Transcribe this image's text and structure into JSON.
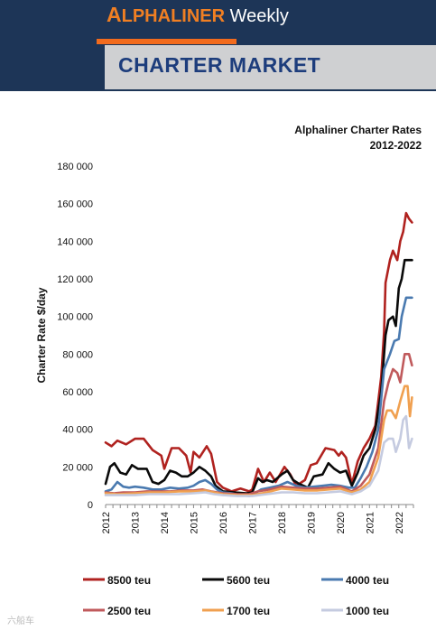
{
  "header": {
    "brand_first": "A",
    "brand_rest": "LPHALINER",
    "brand_suffix": " Weekly",
    "section_title": "CHARTER MARKET",
    "colors": {
      "navy": "#1d3557",
      "orange": "#f26b1d",
      "title_box": "#cfd0d2",
      "title_text": "#1d3d7c"
    }
  },
  "watermark": "六船车",
  "chart_data": {
    "type": "line",
    "title_lines": [
      "Alphaliner Charter Rates",
      "2012-2022"
    ],
    "ylabel": "Charter Rate $/day",
    "xlabel": "",
    "xlim": [
      2012,
      2022.5
    ],
    "ylim": [
      0,
      180000
    ],
    "y_ticks": [
      0,
      20000,
      40000,
      60000,
      80000,
      100000,
      120000,
      140000,
      160000,
      180000
    ],
    "y_tick_labels": [
      "0",
      "20 000",
      "40 000",
      "60 000",
      "80 000",
      "100 000",
      "120 000",
      "140 000",
      "160 000",
      "180 000"
    ],
    "x_ticks": [
      2012,
      2013,
      2014,
      2015,
      2016,
      2017,
      2018,
      2019,
      2020,
      2021,
      2022
    ],
    "x_tick_labels": [
      "2012",
      "2013",
      "2014",
      "2015",
      "2016",
      "2017",
      "2018",
      "2019",
      "2020",
      "2021",
      "2022"
    ],
    "grid": false,
    "legend_position": "bottom",
    "series": [
      {
        "name": "8500 teu",
        "color": "#b0221f",
        "points": [
          [
            2012,
            33000
          ],
          [
            2012.2,
            31000
          ],
          [
            2012.4,
            34000
          ],
          [
            2012.7,
            32000
          ],
          [
            2013,
            35000
          ],
          [
            2013.3,
            35000
          ],
          [
            2013.6,
            29000
          ],
          [
            2013.9,
            26000
          ],
          [
            2014,
            19000
          ],
          [
            2014.25,
            30000
          ],
          [
            2014.5,
            30000
          ],
          [
            2014.75,
            26000
          ],
          [
            2014.9,
            17000
          ],
          [
            2015,
            28000
          ],
          [
            2015.2,
            25000
          ],
          [
            2015.45,
            31000
          ],
          [
            2015.6,
            27000
          ],
          [
            2015.8,
            12000
          ],
          [
            2016,
            9000
          ],
          [
            2016.3,
            7000
          ],
          [
            2016.6,
            8500
          ],
          [
            2016.9,
            7000
          ],
          [
            2017,
            8000
          ],
          [
            2017.2,
            19000
          ],
          [
            2017.4,
            12000
          ],
          [
            2017.6,
            17000
          ],
          [
            2017.8,
            12000
          ],
          [
            2018.1,
            20000
          ],
          [
            2018.3,
            16000
          ],
          [
            2018.5,
            10000
          ],
          [
            2018.8,
            13000
          ],
          [
            2019,
            21000
          ],
          [
            2019.2,
            22000
          ],
          [
            2019.5,
            30000
          ],
          [
            2019.8,
            29000
          ],
          [
            2019.95,
            26000
          ],
          [
            2020.05,
            28000
          ],
          [
            2020.2,
            25000
          ],
          [
            2020.4,
            11000
          ],
          [
            2020.6,
            23000
          ],
          [
            2020.8,
            30000
          ],
          [
            2021,
            35000
          ],
          [
            2021.2,
            42000
          ],
          [
            2021.4,
            68000
          ],
          [
            2021.5,
            92000
          ],
          [
            2021.55,
            118000
          ],
          [
            2021.7,
            130000
          ],
          [
            2021.8,
            135000
          ],
          [
            2021.95,
            130000
          ],
          [
            2022.05,
            140000
          ],
          [
            2022.15,
            145000
          ],
          [
            2022.25,
            155000
          ],
          [
            2022.35,
            152000
          ],
          [
            2022.45,
            150000
          ]
        ]
      },
      {
        "name": "5600 teu",
        "color": "#0a0a0a",
        "points": [
          [
            2012,
            11000
          ],
          [
            2012.15,
            20000
          ],
          [
            2012.3,
            22000
          ],
          [
            2012.5,
            17000
          ],
          [
            2012.7,
            16000
          ],
          [
            2012.9,
            21000
          ],
          [
            2013.1,
            19000
          ],
          [
            2013.4,
            19000
          ],
          [
            2013.6,
            12000
          ],
          [
            2013.8,
            11000
          ],
          [
            2014,
            13000
          ],
          [
            2014.2,
            18000
          ],
          [
            2014.4,
            17000
          ],
          [
            2014.6,
            15000
          ],
          [
            2014.8,
            15000
          ],
          [
            2015,
            17000
          ],
          [
            2015.2,
            20000
          ],
          [
            2015.4,
            18000
          ],
          [
            2015.6,
            15000
          ],
          [
            2015.75,
            10000
          ],
          [
            2016,
            7000
          ],
          [
            2016.4,
            6500
          ],
          [
            2016.8,
            6000
          ],
          [
            2017,
            6500
          ],
          [
            2017.2,
            14000
          ],
          [
            2017.35,
            12000
          ],
          [
            2017.5,
            13000
          ],
          [
            2017.7,
            12000
          ],
          [
            2018,
            16000
          ],
          [
            2018.2,
            18000
          ],
          [
            2018.4,
            13000
          ],
          [
            2018.6,
            11000
          ],
          [
            2018.9,
            9000
          ],
          [
            2019.1,
            15000
          ],
          [
            2019.4,
            16000
          ],
          [
            2019.6,
            22000
          ],
          [
            2019.8,
            19000
          ],
          [
            2020,
            17000
          ],
          [
            2020.2,
            18000
          ],
          [
            2020.4,
            10000
          ],
          [
            2020.6,
            17000
          ],
          [
            2020.8,
            26000
          ],
          [
            2021,
            30000
          ],
          [
            2021.2,
            40000
          ],
          [
            2021.4,
            60000
          ],
          [
            2021.55,
            90000
          ],
          [
            2021.65,
            98000
          ],
          [
            2021.8,
            100000
          ],
          [
            2021.9,
            95000
          ],
          [
            2022,
            115000
          ],
          [
            2022.1,
            120000
          ],
          [
            2022.2,
            130000
          ],
          [
            2022.35,
            130000
          ],
          [
            2022.45,
            130000
          ]
        ]
      },
      {
        "name": "4000 teu",
        "color": "#4a7ab0",
        "points": [
          [
            2012,
            7000
          ],
          [
            2012.2,
            8000
          ],
          [
            2012.4,
            12000
          ],
          [
            2012.6,
            9500
          ],
          [
            2012.8,
            9000
          ],
          [
            2013,
            9500
          ],
          [
            2013.3,
            9000
          ],
          [
            2013.6,
            8000
          ],
          [
            2013.9,
            8000
          ],
          [
            2014.2,
            9000
          ],
          [
            2014.5,
            8500
          ],
          [
            2014.8,
            9000
          ],
          [
            2015,
            10000
          ],
          [
            2015.2,
            12000
          ],
          [
            2015.4,
            13000
          ],
          [
            2015.6,
            11000
          ],
          [
            2015.8,
            8000
          ],
          [
            2016,
            6500
          ],
          [
            2016.3,
            6000
          ],
          [
            2016.6,
            5000
          ],
          [
            2016.9,
            4500
          ],
          [
            2017,
            5000
          ],
          [
            2017.3,
            8000
          ],
          [
            2017.6,
            9000
          ],
          [
            2017.9,
            10000
          ],
          [
            2018.2,
            12000
          ],
          [
            2018.5,
            10000
          ],
          [
            2018.8,
            9000
          ],
          [
            2019.1,
            9500
          ],
          [
            2019.4,
            10000
          ],
          [
            2019.7,
            10500
          ],
          [
            2020,
            10000
          ],
          [
            2020.3,
            9000
          ],
          [
            2020.5,
            9000
          ],
          [
            2020.7,
            14000
          ],
          [
            2020.9,
            20000
          ],
          [
            2021.1,
            28000
          ],
          [
            2021.3,
            40000
          ],
          [
            2021.5,
            72000
          ],
          [
            2021.7,
            80000
          ],
          [
            2021.85,
            87000
          ],
          [
            2022,
            88000
          ],
          [
            2022.1,
            100000
          ],
          [
            2022.25,
            110000
          ],
          [
            2022.45,
            110000
          ]
        ]
      },
      {
        "name": "2500 teu",
        "color": "#c05a5c",
        "points": [
          [
            2012,
            6500
          ],
          [
            2012.3,
            6000
          ],
          [
            2012.6,
            6500
          ],
          [
            2013,
            6500
          ],
          [
            2013.4,
            7000
          ],
          [
            2013.8,
            7000
          ],
          [
            2014.2,
            7000
          ],
          [
            2014.6,
            7500
          ],
          [
            2015,
            7500
          ],
          [
            2015.3,
            8000
          ],
          [
            2015.6,
            7000
          ],
          [
            2016,
            6000
          ],
          [
            2016.5,
            5500
          ],
          [
            2016.9,
            5500
          ],
          [
            2017.2,
            7000
          ],
          [
            2017.6,
            8000
          ],
          [
            2018,
            9500
          ],
          [
            2018.4,
            9000
          ],
          [
            2018.8,
            8500
          ],
          [
            2019.2,
            8500
          ],
          [
            2019.6,
            9000
          ],
          [
            2020,
            9500
          ],
          [
            2020.4,
            7000
          ],
          [
            2020.7,
            10000
          ],
          [
            2021,
            16000
          ],
          [
            2021.3,
            30000
          ],
          [
            2021.5,
            55000
          ],
          [
            2021.65,
            65000
          ],
          [
            2021.8,
            72000
          ],
          [
            2021.95,
            70000
          ],
          [
            2022.05,
            65000
          ],
          [
            2022.2,
            80000
          ],
          [
            2022.35,
            80000
          ],
          [
            2022.45,
            74000
          ]
        ]
      },
      {
        "name": "1700 teu",
        "color": "#f0a050",
        "points": [
          [
            2012,
            6000
          ],
          [
            2012.4,
            5500
          ],
          [
            2013,
            6000
          ],
          [
            2013.5,
            6500
          ],
          [
            2014,
            6500
          ],
          [
            2014.5,
            7000
          ],
          [
            2015,
            7000
          ],
          [
            2015.4,
            7500
          ],
          [
            2015.7,
            6500
          ],
          [
            2016,
            5500
          ],
          [
            2016.5,
            5000
          ],
          [
            2017,
            5000
          ],
          [
            2017.5,
            6500
          ],
          [
            2018,
            8500
          ],
          [
            2018.4,
            8000
          ],
          [
            2018.8,
            7500
          ],
          [
            2019.2,
            7500
          ],
          [
            2019.6,
            8000
          ],
          [
            2020,
            8500
          ],
          [
            2020.4,
            6500
          ],
          [
            2020.7,
            8000
          ],
          [
            2021,
            12000
          ],
          [
            2021.3,
            25000
          ],
          [
            2021.5,
            45000
          ],
          [
            2021.6,
            50000
          ],
          [
            2021.75,
            50000
          ],
          [
            2021.9,
            46000
          ],
          [
            2022.05,
            55000
          ],
          [
            2022.2,
            63000
          ],
          [
            2022.3,
            63000
          ],
          [
            2022.38,
            47000
          ],
          [
            2022.45,
            57000
          ]
        ]
      },
      {
        "name": "1000 teu",
        "color": "#c5cbe0",
        "points": [
          [
            2012,
            5000
          ],
          [
            2012.5,
            5000
          ],
          [
            2013,
            5000
          ],
          [
            2013.5,
            5500
          ],
          [
            2014,
            5500
          ],
          [
            2014.5,
            5500
          ],
          [
            2015,
            6000
          ],
          [
            2015.4,
            6500
          ],
          [
            2015.7,
            5500
          ],
          [
            2016,
            5000
          ],
          [
            2016.5,
            4500
          ],
          [
            2017,
            4500
          ],
          [
            2017.5,
            5500
          ],
          [
            2018,
            6500
          ],
          [
            2018.4,
            6500
          ],
          [
            2018.8,
            6000
          ],
          [
            2019.2,
            6000
          ],
          [
            2019.6,
            6500
          ],
          [
            2020,
            7000
          ],
          [
            2020.4,
            5500
          ],
          [
            2020.7,
            7000
          ],
          [
            2021,
            10000
          ],
          [
            2021.3,
            18000
          ],
          [
            2021.5,
            33000
          ],
          [
            2021.65,
            35000
          ],
          [
            2021.8,
            35000
          ],
          [
            2021.9,
            28000
          ],
          [
            2022.05,
            35000
          ],
          [
            2022.15,
            45000
          ],
          [
            2022.25,
            47000
          ],
          [
            2022.35,
            30000
          ],
          [
            2022.45,
            35000
          ]
        ]
      }
    ]
  }
}
